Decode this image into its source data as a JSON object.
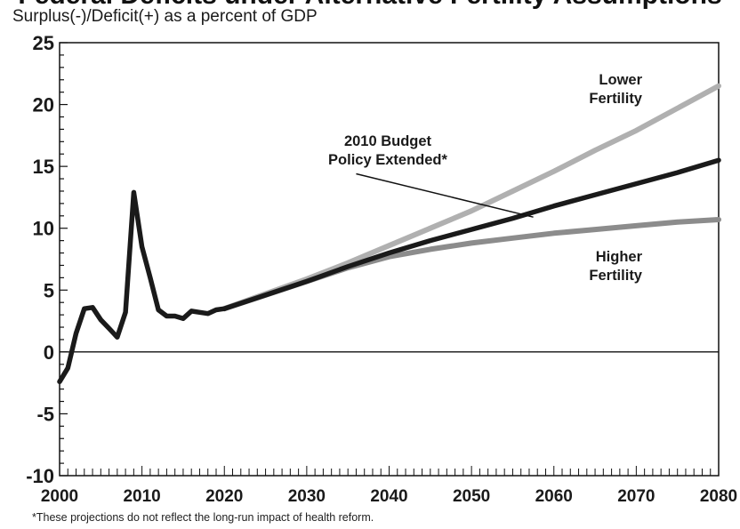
{
  "header": {
    "subtitle": "Surplus(-)/Deficit(+) as a percent of GDP"
  },
  "footnote": "*These projections do not reflect the long-run impact of health reform.",
  "chart_data": {
    "type": "line",
    "ylabel": "Surplus(-)/Deficit(+) as a percent of GDP",
    "xlim": [
      2000,
      2080
    ],
    "ylim": [
      -10,
      25
    ],
    "yticks": [
      "25",
      "20",
      "15",
      "10",
      "5",
      "0",
      "-5",
      "-10"
    ],
    "ytick_values": [
      25,
      20,
      15,
      10,
      5,
      0,
      -5,
      -10
    ],
    "xticks": [
      "2000",
      "2010",
      "2020",
      "2030",
      "2040",
      "2050",
      "2060",
      "2070",
      "2080"
    ],
    "xtick_values": [
      2000,
      2010,
      2020,
      2030,
      2040,
      2050,
      2060,
      2070,
      2080
    ],
    "zero_line": true,
    "colors": {
      "historical": "#1a1a1a",
      "baseline": "#1a1a1a",
      "lower": "#b0b0b0",
      "higher": "#8c8c8c"
    },
    "historical": {
      "x": [
        2000,
        2001,
        2002,
        2003,
        2004,
        2005,
        2006,
        2007,
        2008,
        2009,
        2010,
        2011,
        2012,
        2013,
        2014,
        2015,
        2016,
        2017,
        2018,
        2019,
        2020
      ],
      "y": [
        -2.4,
        -1.3,
        1.5,
        3.5,
        3.6,
        2.6,
        1.9,
        1.2,
        3.2,
        12.9,
        8.5,
        6.0,
        3.4,
        2.9,
        2.9,
        2.7,
        3.3,
        3.2,
        3.1,
        3.4,
        3.5
      ]
    },
    "series": [
      {
        "name": "Lower Fertility",
        "label": [
          "Lower",
          "Fertility"
        ],
        "x": [
          2020,
          2025,
          2030,
          2035,
          2040,
          2045,
          2050,
          2055,
          2060,
          2065,
          2070,
          2075,
          2080
        ],
        "y": [
          3.5,
          4.7,
          5.9,
          7.2,
          8.6,
          10.0,
          11.4,
          13.0,
          14.6,
          16.3,
          17.9,
          19.7,
          21.5
        ]
      },
      {
        "name": "2010 Budget Policy Extended*",
        "label": [
          "2010 Budget",
          "Policy Extended*"
        ],
        "x": [
          2020,
          2025,
          2030,
          2035,
          2040,
          2045,
          2050,
          2055,
          2060,
          2065,
          2070,
          2075,
          2080
        ],
        "y": [
          3.5,
          4.6,
          5.7,
          6.9,
          8.0,
          9.0,
          9.9,
          10.8,
          11.8,
          12.7,
          13.6,
          14.5,
          15.5
        ]
      },
      {
        "name": "Higher Fertility",
        "label": [
          "Higher",
          "Fertility"
        ],
        "x": [
          2020,
          2025,
          2030,
          2035,
          2040,
          2045,
          2050,
          2055,
          2060,
          2065,
          2070,
          2075,
          2080
        ],
        "y": [
          3.5,
          4.6,
          5.7,
          6.8,
          7.7,
          8.3,
          8.8,
          9.2,
          9.6,
          9.9,
          10.2,
          10.5,
          10.7
        ]
      }
    ]
  }
}
